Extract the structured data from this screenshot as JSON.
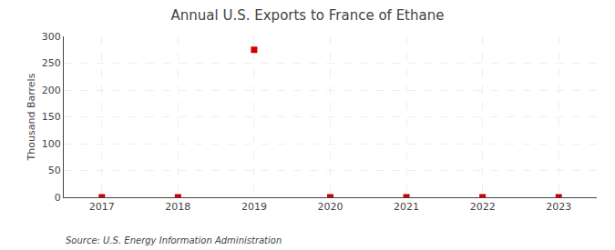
{
  "chart_data": {
    "type": "scatter",
    "title": "Annual U.S. Exports to France of Ethane",
    "ylabel": "Thousand Barrels",
    "annotation": "Source: U.S. Energy Information Administration",
    "x": [
      2017,
      2018,
      2019,
      2020,
      2021,
      2022,
      2023
    ],
    "values": [
      0,
      0,
      275,
      0,
      0,
      0,
      0
    ],
    "color": "#cc0000",
    "marker": "square",
    "xlim": [
      2016.5,
      2023.5
    ],
    "xticks": [
      2017,
      2018,
      2019,
      2020,
      2021,
      2022,
      2023
    ],
    "ylim": [
      0,
      300
    ],
    "yticks": [
      0,
      50,
      100,
      150,
      200,
      250,
      300
    ],
    "grid": true
  }
}
